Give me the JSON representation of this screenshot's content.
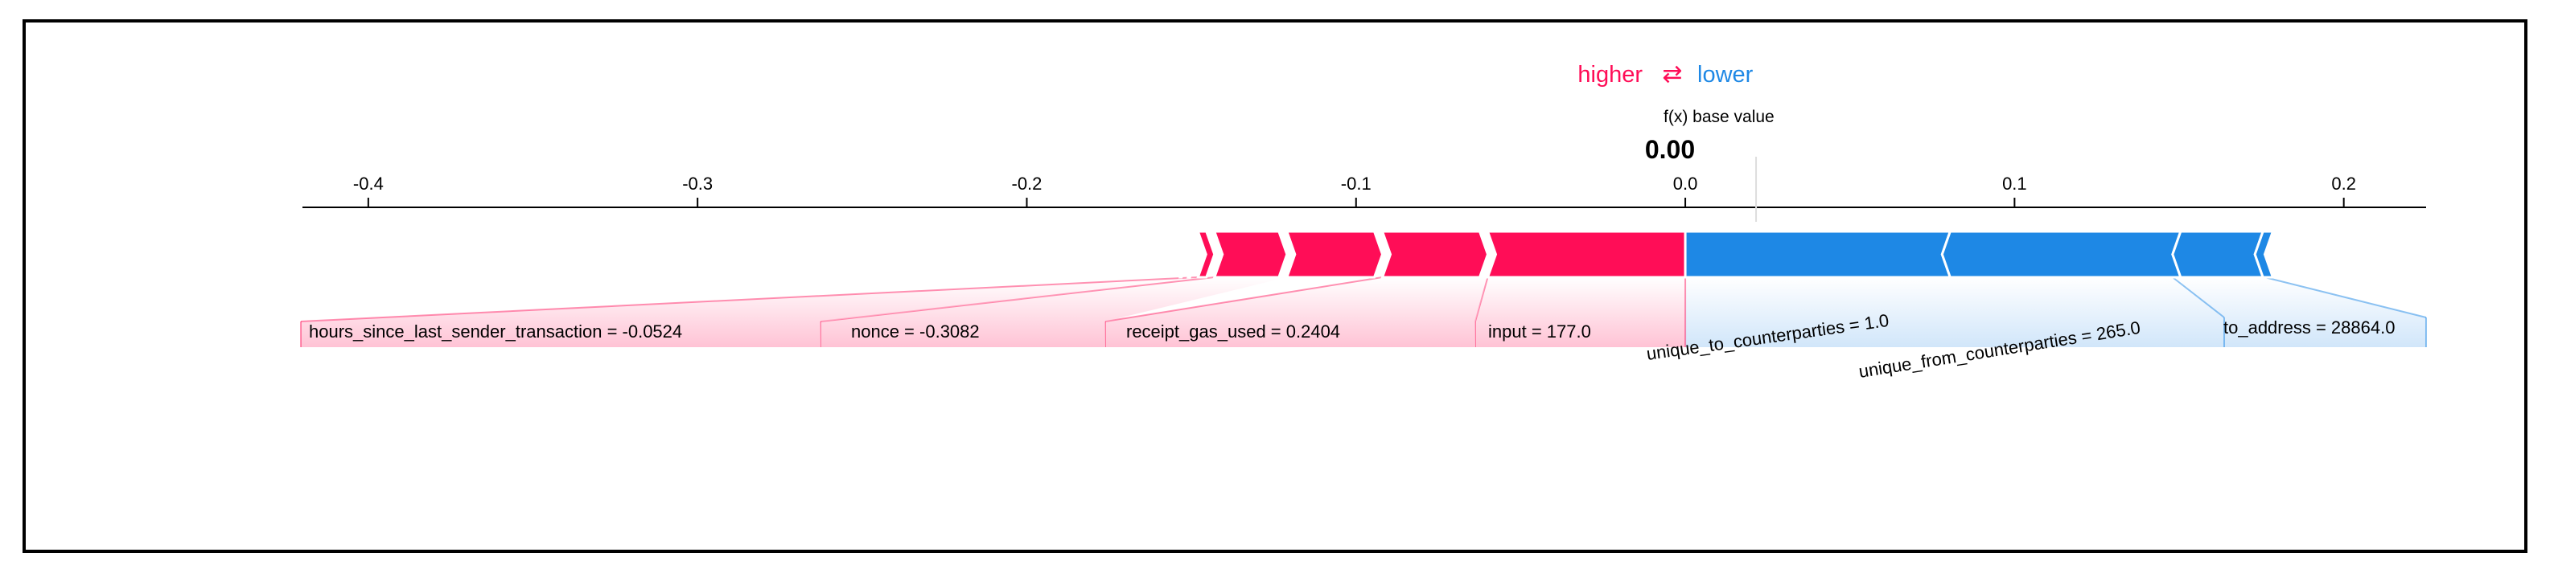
{
  "legend": {
    "higher_label": "higher",
    "arrow_glyph": "⇄",
    "lower_label": "lower"
  },
  "base_value_label": "f(x) base value",
  "output_value_label": "0.00",
  "colors": {
    "positive": "#ff0d57",
    "negative": "#1e88e5",
    "positive_light": "#ffc3d5",
    "negative_light": "#d1e6fa",
    "axis": "#000000",
    "frame": "#000000"
  },
  "chart_data": {
    "type": "force",
    "base_value": 0.0,
    "output_value": 0.0,
    "xlim": [
      -0.42,
      0.225
    ],
    "ticks": [
      -0.4,
      -0.3,
      -0.2,
      -0.1,
      0.0,
      0.1,
      0.2
    ],
    "tick_labels": [
      "-0.4",
      "-0.3",
      "-0.2",
      "-0.1",
      "0.0",
      "0.1",
      "0.2"
    ],
    "positive_features": [
      {
        "label": "input = 177.0",
        "start": -0.06,
        "end": 0.0
      },
      {
        "label": "receipt_gas_used = 0.2404",
        "start": -0.092,
        "end": -0.06
      },
      {
        "label": "",
        "start": -0.121,
        "end": -0.092
      },
      {
        "label": "nonce = -0.3082",
        "start": -0.143,
        "end": -0.121
      },
      {
        "label": "hours_since_last_sender_transaction = -0.0524",
        "start": -0.148,
        "end": -0.143
      },
      {
        "label": "",
        "start": -0.151,
        "end": -0.148
      },
      {
        "label": "",
        "start": -0.153,
        "end": -0.151
      }
    ],
    "negative_features": [
      {
        "label": "unique_to_counterparties = 1.0",
        "start": 0.0,
        "end": 0.078
      },
      {
        "label": "unique_from_counterparties = 265.0",
        "start": 0.078,
        "end": 0.148
      },
      {
        "label": "to_address = 28864.0",
        "start": 0.148,
        "end": 0.173
      },
      {
        "label": "",
        "start": 0.173,
        "end": 0.176
      }
    ]
  }
}
